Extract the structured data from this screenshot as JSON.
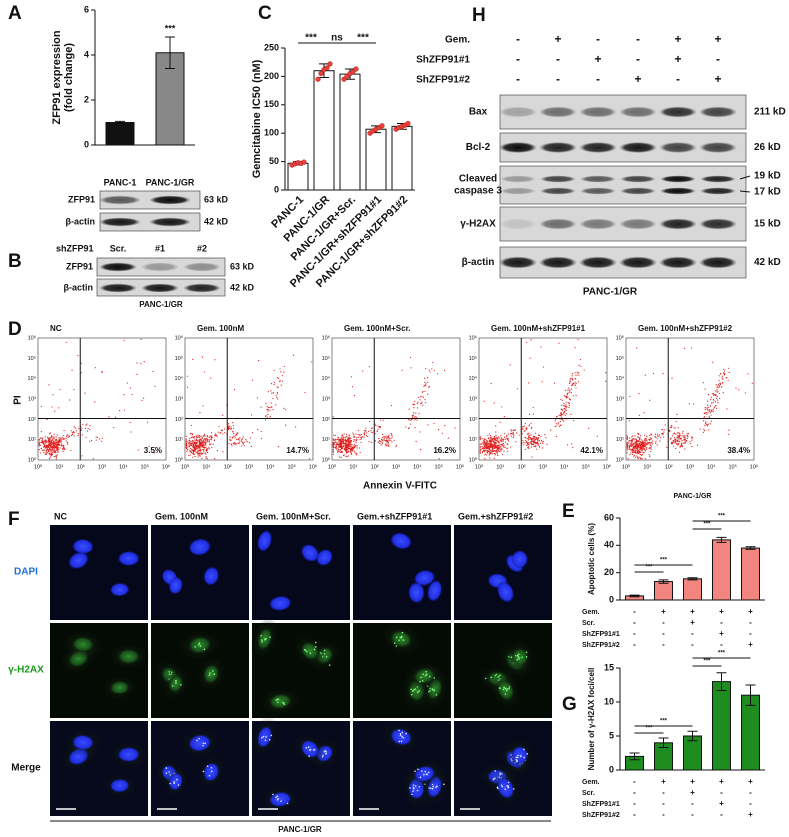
{
  "panel_labels": [
    "A",
    "B",
    "C",
    "D",
    "E",
    "F",
    "G",
    "H"
  ],
  "chart_data": [
    {
      "type": "bar",
      "y_label": [
        "ZFP91 expression",
        "(fold change)"
      ],
      "categories": [
        "PANC-1",
        "PANC-1/GR"
      ],
      "values": [
        1,
        4.1
      ],
      "errors": [
        0.05,
        0.7
      ],
      "colors": [
        "#111111",
        "#888888"
      ],
      "ylim": [
        0,
        6
      ],
      "yticks": [
        0,
        2,
        4,
        6
      ],
      "annotations": [
        {
          "index": 1,
          "label": "***"
        }
      ]
    },
    {
      "type": "bar",
      "y_label": [
        "Gemcitabine IC50 (nM)"
      ],
      "categories": [
        "PANC-1",
        "PANC-1/GR",
        "PANC-1/GR+Scr.",
        "PANC-1/GR+shZFP91#1",
        "PANC-1/GR+shZFP91#2"
      ],
      "values": [
        47,
        210,
        204,
        107,
        112
      ],
      "errors": [
        3,
        12,
        9,
        6,
        5
      ],
      "points": [
        [
          44,
          46,
          48,
          47,
          49
        ],
        [
          195,
          205,
          212,
          215,
          222
        ],
        [
          195,
          200,
          205,
          208,
          213
        ],
        [
          100,
          104,
          107,
          110,
          113
        ],
        [
          107,
          110,
          112,
          114,
          117
        ]
      ],
      "color": "#ffffff",
      "point_color": "#e8403a",
      "ylim": [
        0,
        250
      ],
      "yticks": [
        0,
        50,
        100,
        150,
        200,
        250
      ],
      "brackets": [
        {
          "from": 0,
          "to": 1,
          "label": "***"
        },
        {
          "from": 1,
          "to": 2,
          "label": "ns"
        },
        {
          "from": 2,
          "to": 3,
          "label": "***"
        }
      ]
    },
    {
      "type": "bar",
      "title": "PANC-1/GR",
      "y_label": [
        "Apoptotic cells (%)"
      ],
      "values": [
        3,
        13.5,
        15.5,
        44,
        38
      ],
      "errors": [
        0.6,
        1.2,
        0.8,
        1.8,
        1
      ],
      "color": "#f28580",
      "ylim": [
        0,
        60
      ],
      "yticks": [
        0,
        20,
        40,
        60
      ],
      "brackets": [
        {
          "from": 0,
          "to": 1,
          "label": "***"
        },
        {
          "from": 0,
          "to": 2,
          "label": "***"
        },
        {
          "from": 2,
          "to": 3,
          "label": "***"
        },
        {
          "from": 2,
          "to": 4,
          "label": "***"
        }
      ],
      "conditions": [
        {
          "label": "Gem.",
          "signs": [
            "-",
            "+",
            "+",
            "+",
            "+"
          ]
        },
        {
          "label": "Scr.",
          "signs": [
            "-",
            "-",
            "+",
            "-",
            "-"
          ]
        },
        {
          "label": "ShZFP91#1",
          "signs": [
            "-",
            "-",
            "-",
            "+",
            "-"
          ]
        },
        {
          "label": "ShZFP91#2",
          "signs": [
            "-",
            "-",
            "-",
            "-",
            "+"
          ]
        }
      ]
    },
    {
      "type": "bar",
      "y_label": [
        "Number of γ-H2AX foci/cell"
      ],
      "values": [
        2,
        4,
        5,
        13,
        11
      ],
      "errors": [
        0.5,
        0.7,
        0.7,
        1.3,
        1.5
      ],
      "color": "#1e8c1e",
      "ylim": [
        0,
        15
      ],
      "yticks": [
        0,
        5,
        10,
        15
      ],
      "brackets": [
        {
          "from": 0,
          "to": 1,
          "label": "***"
        },
        {
          "from": 0,
          "to": 2,
          "label": "***"
        },
        {
          "from": 2,
          "to": 3,
          "label": "***"
        },
        {
          "from": 2,
          "to": 4,
          "label": "***"
        }
      ],
      "conditions": [
        {
          "label": "Gem.",
          "signs": [
            "-",
            "+",
            "+",
            "+",
            "+"
          ]
        },
        {
          "label": "Scr.",
          "signs": [
            "-",
            "-",
            "+",
            "-",
            "-"
          ]
        },
        {
          "label": "ShZFP91#1",
          "signs": [
            "-",
            "-",
            "-",
            "+",
            "-"
          ]
        },
        {
          "label": "ShZFP91#2",
          "signs": [
            "-",
            "-",
            "-",
            "-",
            "+"
          ]
        }
      ]
    }
  ],
  "blot_A": {
    "rows": [
      {
        "label": "ZFP91",
        "size": "63 kD"
      },
      {
        "label": "β-actin",
        "size": "42 kD"
      }
    ]
  },
  "blot_B": {
    "group_label": "shZFP91",
    "lanes": [
      "Scr.",
      "#1",
      "#2"
    ],
    "rows": [
      {
        "label": "ZFP91",
        "size": "63 kD"
      },
      {
        "label": "β-actin",
        "size": "42 kD"
      }
    ],
    "footer": "PANC-1/GR"
  },
  "blot_H": {
    "conditions": [
      {
        "label": "Gem.",
        "signs": [
          "-",
          "+",
          "-",
          "-",
          "+",
          "+"
        ]
      },
      {
        "label": "ShZFP91#1",
        "signs": [
          "-",
          "-",
          "+",
          "-",
          "+",
          "-"
        ]
      },
      {
        "label": "ShZFP91#2",
        "signs": [
          "-",
          "-",
          "-",
          "+",
          "-",
          "+"
        ]
      }
    ],
    "rows": [
      {
        "label": [
          "Bax"
        ],
        "sizes": [
          "211 kD"
        ]
      },
      {
        "label": [
          "Bcl-2"
        ],
        "sizes": [
          "26 kD"
        ]
      },
      {
        "label": [
          "Cleaved",
          "caspase 3"
        ],
        "sizes": [
          "19 kD",
          "17 kD"
        ]
      },
      {
        "label": [
          "γ-H2AX"
        ],
        "sizes": [
          "15 kD"
        ]
      },
      {
        "label": [
          "β-actin"
        ],
        "sizes": [
          "42 kD"
        ]
      }
    ],
    "footer": "PANC-1/GR"
  },
  "flow": {
    "y_label": "PI",
    "x_label": "Annexin V-FITC",
    "ticks": [
      "10⁰",
      "10¹",
      "10²",
      "10³",
      "10⁴",
      "10⁵",
      "10⁶"
    ],
    "panels": [
      {
        "title": "NC",
        "percent": "3.5%"
      },
      {
        "title": "Gem. 100nM",
        "percent": "14.7%"
      },
      {
        "title": "Gem. 100nM+Scr.",
        "percent": "16.2%"
      },
      {
        "title": "Gem. 100nM+shZFP91#1",
        "percent": "42.1%"
      },
      {
        "title": "Gem. 100nM+shZFP91#2",
        "percent": "38.4%"
      }
    ]
  },
  "microscopy": {
    "columns": [
      "NC",
      "Gem. 100nM",
      "Gem. 100nM+Scr.",
      "Gem.+shZFP91#1",
      "Gem.+shZFP91#2"
    ],
    "rows": [
      "DAPI",
      "γ-H2AX",
      "Merge"
    ],
    "footer": "PANC-1/GR"
  }
}
